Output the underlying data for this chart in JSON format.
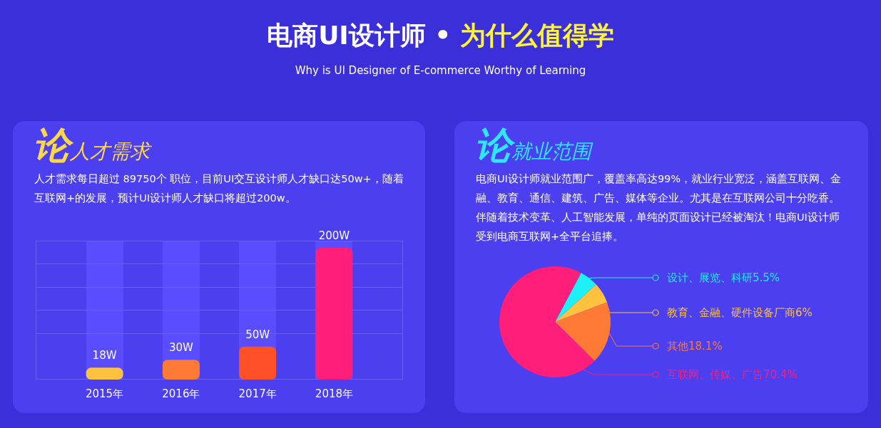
{
  "chart_data": [
    {
      "type": "other",
      "title": "电商UI设计师 • 为什么值得学",
      "subtitle": "Why is UI Designer of E-commerce Worthy of Learning"
    },
    {
      "type": "bar",
      "title": "论人才需求",
      "annotations": [
        "人才需求每日超过 89750个 职位，目前UI交互设计师人才缺口达50w+，随着互联网+的发展，预计UI设计师人才缺口将超过200w。"
      ],
      "categories": [
        "2015年",
        "2016年",
        "2017年",
        "2018年"
      ],
      "values": [
        18,
        30,
        50,
        200
      ],
      "value_labels": [
        "18W",
        "30W",
        "50W",
        "200W"
      ],
      "colors": [
        "#ffc23e",
        "#ff7a35",
        "#ff5028",
        "#ff1f7a"
      ]
    },
    {
      "type": "pie",
      "title": "论就业范围",
      "annotations": [
        "电商UI设计师就业范围广，覆盖率高达99%，就业行业宽泛，涵盖互联网、金融、教育、通信、建筑、广告、媒体等企业。尤其是在互联网公司十分吃香。伴随着技术变革、人工智能发展，单纯的页面设计已经被淘汰！电商UI设计师受到电商互联网+全平台追捧。"
      ],
      "categories": [
        "设计、展览、科研5.5%",
        "教育、金融、硬件设备厂商6%",
        "其他18.1%",
        "互联网、传媒、广告70.4%"
      ],
      "values": [
        5.5,
        6,
        18.1,
        70.4
      ],
      "colors": [
        "#1ef0f8",
        "#ffc23e",
        "#ff7a35",
        "#ff1f7a"
      ],
      "legend": "right"
    }
  ]
}
